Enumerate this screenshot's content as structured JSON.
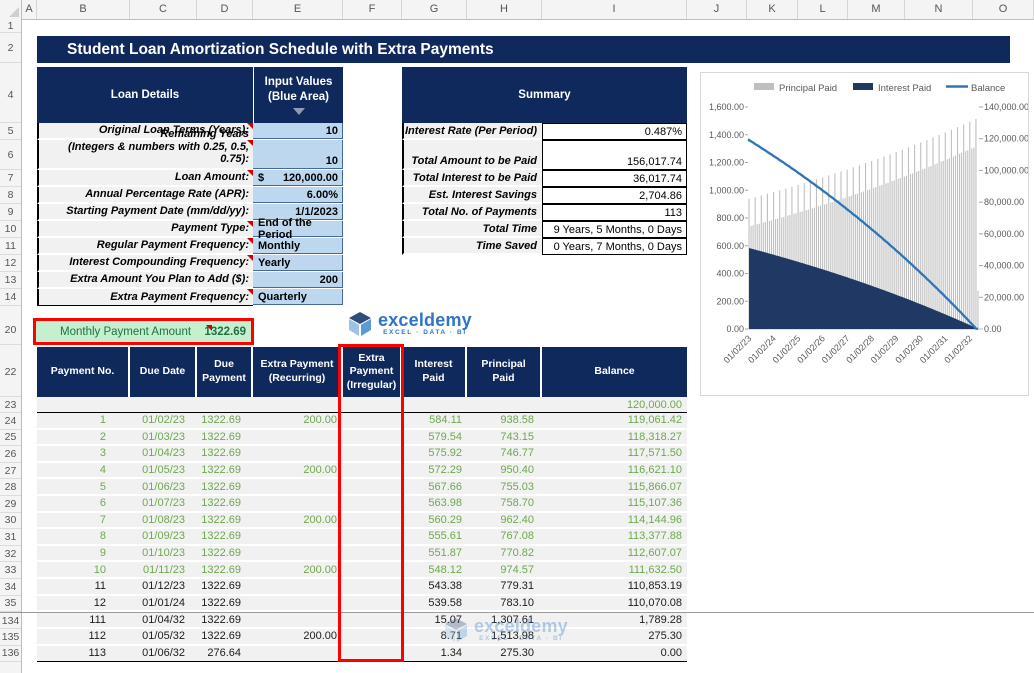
{
  "title": "Student Loan Amortization Schedule with Extra Payments",
  "colors": {
    "navy": "#10295c",
    "input_blue": "#bdd7ee",
    "cell_gray": "#f1f1f1",
    "green_text": "#6ea84f",
    "dark_green": "#1e7145",
    "green_bg": "#c6efce",
    "red": "#ff0000",
    "bar_gray": "#bfbfbf",
    "interest_navy": "#1f3864",
    "balance_blue": "#2e75b6",
    "axis_text": "#595959"
  },
  "spreadsheet": {
    "column_letters": [
      "A",
      "B",
      "C",
      "D",
      "E",
      "F",
      "G",
      "H",
      "I",
      "J",
      "K",
      "L",
      "M",
      "N",
      "O"
    ],
    "row_numbers": [
      "1",
      "2",
      "4",
      "5",
      "6",
      "7",
      "8",
      "9",
      "10",
      "11",
      "12",
      "13",
      "14",
      "20",
      "22",
      "23",
      "24",
      "25",
      "26",
      "27",
      "28",
      "29",
      "30",
      "31",
      "32",
      "33",
      "34",
      "35",
      "134",
      "135",
      "136"
    ]
  },
  "loan_details": {
    "header": "Loan Details",
    "input_header_line1": "Input Values",
    "input_header_line2": "(Blue Area)",
    "rows": [
      {
        "label": "Original Loan Terms (Years):",
        "value": "10",
        "note": true
      },
      {
        "label": "Remaining Years\n(Integers & numbers with 0.25, 0.5, 0.75):",
        "value": "10",
        "note": true,
        "tall": true
      },
      {
        "label": "Loan Amount:",
        "value": "120,000.00",
        "prefix": "$",
        "note": true
      },
      {
        "label": "Annual Percentage Rate (APR):",
        "value": "6.00%",
        "note": false
      },
      {
        "label": "Starting Payment Date (mm/dd/yy):",
        "value": "1/1/2023",
        "note": false
      },
      {
        "label": "Payment Type:",
        "value": "End of the Period",
        "note": true,
        "align": "left"
      },
      {
        "label": "Regular Payment Frequency:",
        "value": "Monthly",
        "note": true,
        "align": "left"
      },
      {
        "label": "Interest Compounding Frequency:",
        "value": "Yearly",
        "note": true,
        "align": "left"
      },
      {
        "label": "Extra Amount You Plan to Add ($):",
        "value": "200",
        "note": false
      },
      {
        "label": "Extra Payment Frequency:",
        "value": "Quarterly",
        "note": true,
        "align": "left"
      }
    ]
  },
  "summary": {
    "header": "Summary",
    "rows": [
      {
        "label": "Interest Rate (Per Period)",
        "value": "0.487%"
      },
      {
        "label": "Total Amount to be Paid",
        "value": "156,017.74",
        "tall": true
      },
      {
        "label": "Total Interest to be Paid",
        "value": "36,017.74"
      },
      {
        "label": "Est. Interest Savings",
        "value": "2,704.86"
      },
      {
        "label": "Total No. of Payments",
        "value": "113"
      },
      {
        "label": "Total Time",
        "value": "9 Years, 5 Months, 0 Days"
      },
      {
        "label": "Time Saved",
        "value": "0 Years, 7 Months, 0 Days"
      }
    ]
  },
  "monthly_payment": {
    "label": "Monthly Payment Amount",
    "value": "1322.69"
  },
  "logo": {
    "text": "exceldemy",
    "tagline": "EXCEL · DATA · BI"
  },
  "payment_table": {
    "columns": [
      "Payment No.",
      "Due Date",
      "Due Payment",
      "Extra Payment (Recurring)",
      "Extra Payment (Irregular)",
      "Interest Paid",
      "Principal Paid",
      "Balance"
    ],
    "rows": [
      {
        "no": "",
        "date": "",
        "due": "",
        "rec": "",
        "irr": "",
        "int": "",
        "prin": "",
        "bal": "120,000.00",
        "color": "green",
        "initial": true
      },
      {
        "no": "1",
        "date": "01/02/23",
        "due": "1322.69",
        "rec": "200.00",
        "irr": "",
        "int": "584.11",
        "prin": "938.58",
        "bal": "119,061.42",
        "color": "green"
      },
      {
        "no": "2",
        "date": "01/03/23",
        "due": "1322.69",
        "rec": "",
        "irr": "",
        "int": "579.54",
        "prin": "743.15",
        "bal": "118,318.27",
        "color": "green"
      },
      {
        "no": "3",
        "date": "01/04/23",
        "due": "1322.69",
        "rec": "",
        "irr": "",
        "int": "575.92",
        "prin": "746.77",
        "bal": "117,571.50",
        "color": "green"
      },
      {
        "no": "4",
        "date": "01/05/23",
        "due": "1322.69",
        "rec": "200.00",
        "irr": "",
        "int": "572.29",
        "prin": "950.40",
        "bal": "116,621.10",
        "color": "green"
      },
      {
        "no": "5",
        "date": "01/06/23",
        "due": "1322.69",
        "rec": "",
        "irr": "",
        "int": "567.66",
        "prin": "755.03",
        "bal": "115,866.07",
        "color": "green"
      },
      {
        "no": "6",
        "date": "01/07/23",
        "due": "1322.69",
        "rec": "",
        "irr": "",
        "int": "563.98",
        "prin": "758.70",
        "bal": "115,107.36",
        "color": "green"
      },
      {
        "no": "7",
        "date": "01/08/23",
        "due": "1322.69",
        "rec": "200.00",
        "irr": "",
        "int": "560.29",
        "prin": "962.40",
        "bal": "114,144.96",
        "color": "green"
      },
      {
        "no": "8",
        "date": "01/09/23",
        "due": "1322.69",
        "rec": "",
        "irr": "",
        "int": "555.61",
        "prin": "767.08",
        "bal": "113,377.88",
        "color": "green"
      },
      {
        "no": "9",
        "date": "01/10/23",
        "due": "1322.69",
        "rec": "",
        "irr": "",
        "int": "551.87",
        "prin": "770.82",
        "bal": "112,607.07",
        "color": "green"
      },
      {
        "no": "10",
        "date": "01/11/23",
        "due": "1322.69",
        "rec": "200.00",
        "irr": "",
        "int": "548.12",
        "prin": "974.57",
        "bal": "111,632.50",
        "color": "green"
      },
      {
        "no": "11",
        "date": "01/12/23",
        "due": "1322.69",
        "rec": "",
        "irr": "",
        "int": "543.38",
        "prin": "779.31",
        "bal": "110,853.19",
        "color": "black"
      },
      {
        "no": "12",
        "date": "01/01/24",
        "due": "1322.69",
        "rec": "",
        "irr": "",
        "int": "539.58",
        "prin": "783.10",
        "bal": "110,070.08",
        "color": "black"
      },
      {
        "no": "111",
        "date": "01/04/32",
        "due": "1322.69",
        "rec": "",
        "irr": "",
        "int": "15.07",
        "prin": "1,307.61",
        "bal": "1,789.28",
        "color": "black"
      },
      {
        "no": "112",
        "date": "01/05/32",
        "due": "1322.69",
        "rec": "200.00",
        "irr": "",
        "int": "8.71",
        "prin": "1,513.98",
        "bal": "275.30",
        "color": "black"
      },
      {
        "no": "113",
        "date": "01/06/32",
        "due": "276.64",
        "rec": "",
        "irr": "",
        "int": "1.34",
        "prin": "275.30",
        "bal": "0.00",
        "color": "black"
      }
    ]
  },
  "chart_data": {
    "type": "combo",
    "legend": [
      {
        "label": "Principal Paid",
        "color": "#bfbfbf",
        "kind": "bar"
      },
      {
        "label": "Interest Paid",
        "color": "#1f3864",
        "kind": "bar"
      },
      {
        "label": "Balance",
        "color": "#2e75b6",
        "kind": "line"
      }
    ],
    "axes": {
      "y_left": {
        "min": 0,
        "max": 1600,
        "step": 200,
        "labels": [
          "0.00",
          "200.00",
          "400.00",
          "600.00",
          "800.00",
          "1,000.00",
          "1,200.00",
          "1,400.00",
          "1,600.00"
        ]
      },
      "y_right": {
        "min": 0,
        "max": 140000,
        "step": 20000,
        "labels": [
          "0.00",
          "20,000.00",
          "40,000.00",
          "60,000.00",
          "80,000.00",
          "100,000.00",
          "120,000.00",
          "140,000.00"
        ]
      },
      "x": {
        "tick_labels": [
          "01/02/23",
          "01/02/24",
          "01/02/25",
          "01/02/26",
          "01/02/27",
          "01/02/28",
          "01/02/29",
          "01/02/30",
          "01/02/31",
          "01/02/32"
        ],
        "tick_every_months": 12
      }
    },
    "series_params": {
      "initial_balance": 120000,
      "regular_payment": 1322.69,
      "extra_payment": 200,
      "extra_every_months": 3,
      "periodic_rate": 0.0048676,
      "n_payments": 113,
      "final_payment": 276.64
    },
    "series": [
      {
        "name": "Principal Paid",
        "kind": "bar",
        "note": "monthly principal, rises from 938.58 to 1,513.98 with quarterly +200 spikes"
      },
      {
        "name": "Interest Paid",
        "kind": "bar",
        "note": "monthly interest, falls from 584.11 to 1.34"
      },
      {
        "name": "Balance",
        "kind": "line",
        "note": "falls from 120,000.00 to 0.00"
      }
    ]
  }
}
